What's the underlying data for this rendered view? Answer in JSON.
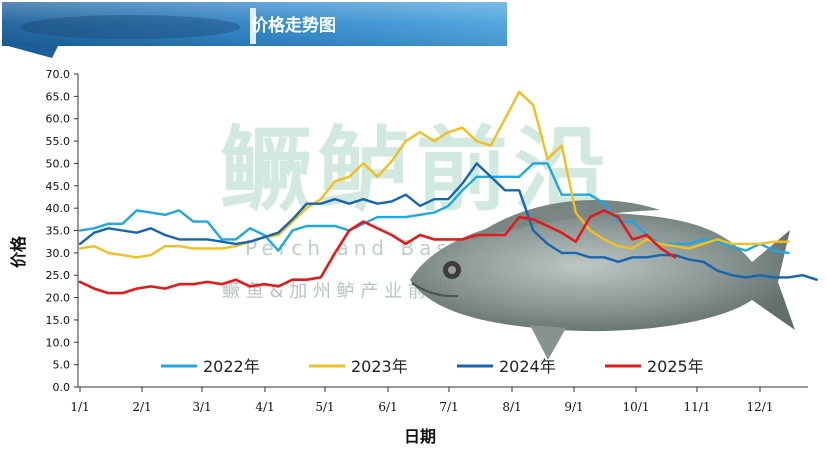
{
  "header": {
    "title": "价格走势图"
  },
  "watermark": {
    "main": "鳜鲈前沿",
    "english": "Perch and Bass",
    "sub": "鳜 鱼 & 加 州 鲈 产 业 前 沿"
  },
  "colors": {
    "header_dark": "#1a5f9b",
    "header_light": "#3f9ad8",
    "series_2022": "#1fa7e0",
    "series_2023": "#f3bf1f",
    "series_2024": "#1566ad",
    "series_2025": "#e11b1b",
    "watermark": "#cbe6da"
  },
  "chart_data": {
    "type": "line",
    "title": "价格走势图",
    "xlabel": "日期",
    "ylabel": "价格",
    "ylim": [
      0,
      70
    ],
    "yticks": [
      "0.0",
      "5.0",
      "10.0",
      "15.0",
      "20.0",
      "25.0",
      "30.0",
      "35.0",
      "40.0",
      "45.0",
      "50.0",
      "55.0",
      "60.0",
      "65.0",
      "70.0"
    ],
    "xticks": [
      "1/1",
      "2/1",
      "3/1",
      "4/1",
      "5/1",
      "6/1",
      "7/1",
      "8/1",
      "9/1",
      "10/1",
      "11/1",
      "12/1"
    ],
    "grid": false,
    "legend_position": "bottom-inside",
    "series": [
      {
        "name": "2022年",
        "values": [
          35,
          35.5,
          36.5,
          36.5,
          39.5,
          39,
          38.5,
          39.5,
          37,
          37,
          33,
          33,
          35.5,
          34,
          30.5,
          35,
          36,
          36,
          36,
          35,
          36.5,
          38,
          38,
          38,
          38.5,
          39,
          40.5,
          44,
          47,
          47,
          47,
          47,
          50,
          50,
          43,
          43,
          43,
          41,
          37,
          37,
          34,
          32,
          32,
          32,
          33,
          32.5,
          31.5,
          30.5,
          32,
          30.5,
          30
        ]
      },
      {
        "name": "2023年",
        "values": [
          31,
          31.5,
          30,
          29.5,
          29,
          29.5,
          31.5,
          31.5,
          31,
          31,
          31,
          31.5,
          32.5,
          33.5,
          34,
          37,
          40,
          42,
          46,
          47,
          50,
          47,
          50.5,
          55,
          57,
          55,
          57,
          58,
          55,
          54,
          60,
          66,
          63,
          51,
          54,
          39,
          35,
          33,
          31.5,
          31,
          33,
          32,
          31.5,
          31,
          32,
          33,
          32,
          32,
          32,
          32.5,
          32.5
        ]
      },
      {
        "name": "2024年",
        "values": [
          32,
          34.5,
          35.5,
          35,
          34.5,
          35.5,
          34,
          33,
          33,
          33,
          32.5,
          32,
          32.5,
          33.5,
          34.5,
          37.5,
          41,
          41,
          42,
          41,
          42,
          41,
          41.5,
          43,
          40.5,
          42,
          42,
          45.5,
          50,
          47,
          44,
          44,
          35,
          32,
          30,
          30,
          29,
          29,
          28,
          29,
          29,
          29.5,
          29.5,
          28.5,
          28,
          26,
          25,
          24.5,
          25,
          24.5,
          24.5,
          25,
          24
        ]
      },
      {
        "name": "2025年",
        "values": [
          23.5,
          22,
          21,
          21,
          22,
          22.5,
          22,
          23,
          23,
          23.5,
          23,
          24,
          22.5,
          23,
          22.5,
          24,
          24,
          24.5,
          30,
          35,
          37,
          35.5,
          34,
          32,
          34,
          33,
          33,
          33,
          34,
          34,
          34,
          38,
          37.5,
          36,
          34.5,
          32.5,
          38,
          39.5,
          38,
          33,
          34,
          31,
          29
        ]
      }
    ]
  }
}
